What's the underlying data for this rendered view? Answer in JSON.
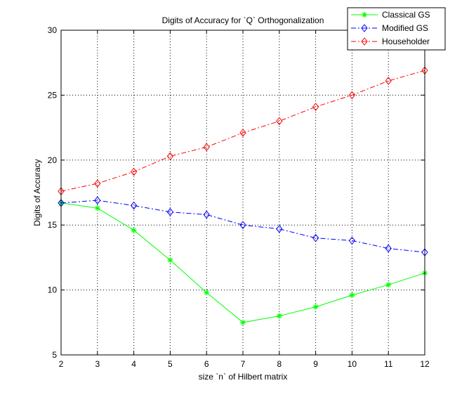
{
  "chart_data": {
    "type": "line",
    "title": "Digits of Accuracy for `Q` Orthogonalization",
    "xlabel": "size `n` of Hilbert matrix",
    "ylabel": "Digits of Accuracy",
    "xlim": [
      2,
      12
    ],
    "ylim": [
      5,
      30
    ],
    "xticks": [
      2,
      3,
      4,
      5,
      6,
      7,
      8,
      9,
      10,
      11,
      12
    ],
    "yticks": [
      5,
      10,
      15,
      20,
      25,
      30
    ],
    "grid": true,
    "legend_position": "top-right",
    "x": [
      2,
      3,
      4,
      5,
      6,
      7,
      8,
      9,
      10,
      11,
      12
    ],
    "series": [
      {
        "name": "Classical GS",
        "color": "#00ff00",
        "line_style": "solid",
        "marker": "star",
        "values": [
          16.7,
          16.3,
          14.6,
          12.3,
          9.8,
          7.5,
          8.0,
          8.7,
          9.6,
          10.4,
          11.3
        ]
      },
      {
        "name": "Modified GS",
        "color": "#0000ff",
        "line_style": "dash-dot",
        "marker": "diamond",
        "values": [
          16.7,
          16.9,
          16.5,
          16.0,
          15.8,
          15.0,
          14.7,
          14.0,
          13.8,
          13.2,
          12.9
        ]
      },
      {
        "name": "Householder",
        "color": "#ff0000",
        "line_style": "dash-dot",
        "marker": "diamond",
        "values": [
          17.6,
          18.2,
          19.1,
          20.3,
          21.0,
          22.1,
          23.0,
          24.1,
          25.0,
          26.1,
          26.9
        ]
      }
    ]
  }
}
